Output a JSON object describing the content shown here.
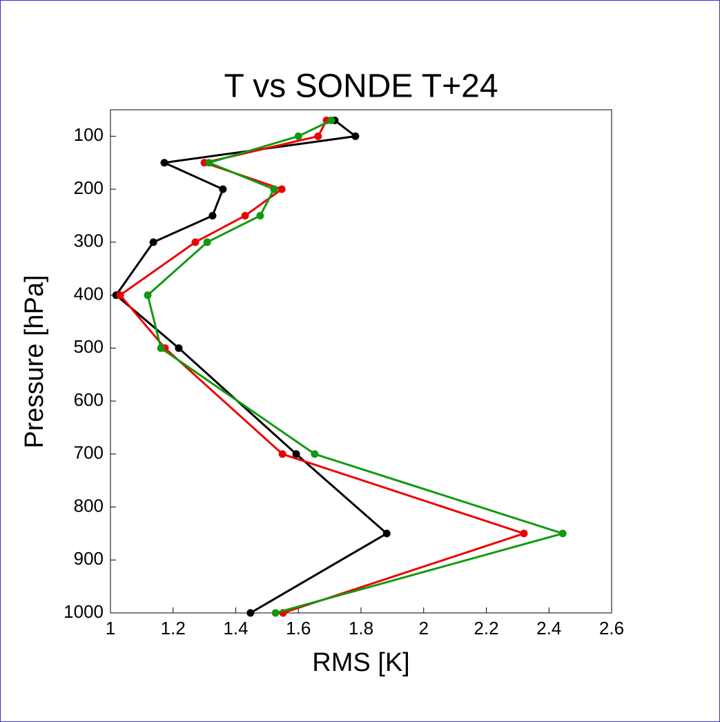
{
  "chart_data": {
    "type": "line",
    "title": "T vs SONDE T+24",
    "x_label": "RMS [K]",
    "y_label": "Pressure [hPa]",
    "y": [
      70,
      100,
      150,
      200,
      250,
      300,
      400,
      500,
      700,
      850,
      1000
    ],
    "series": [
      {
        "color": "#000000",
        "values": [
          1.716,
          1.782,
          1.172,
          1.359,
          1.326,
          1.137,
          1.018,
          1.218,
          1.593,
          1.882,
          1.447
        ]
      },
      {
        "color": "#ee0000",
        "values": [
          1.69,
          1.663,
          1.3,
          1.547,
          1.43,
          1.271,
          1.031,
          1.174,
          1.549,
          2.32,
          1.551
        ]
      },
      {
        "color": "#119911",
        "values": [
          1.705,
          1.6,
          1.315,
          1.522,
          1.478,
          1.309,
          1.119,
          1.161,
          1.652,
          2.444,
          1.527
        ]
      }
    ],
    "xlim": [
      1,
      2.6
    ],
    "xticks": [
      1,
      1.2,
      1.4,
      1.6,
      1.8,
      2,
      2.2,
      2.4,
      2.6
    ],
    "ylim": [
      1000,
      50
    ],
    "yticks": [
      100,
      200,
      300,
      400,
      500,
      600,
      700,
      800,
      900,
      1000
    ]
  }
}
